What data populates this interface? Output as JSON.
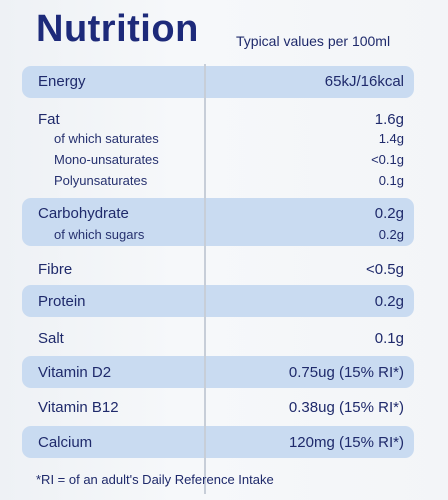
{
  "label": {
    "title": "Nutrition",
    "subtitle": "Typical values per 100ml",
    "rows": [
      {
        "name": "Energy",
        "value": "65kJ/16kcal"
      },
      {
        "name": "Fat",
        "value": "1.6g"
      },
      {
        "name": "of which saturates",
        "value": "1.4g"
      },
      {
        "name": "Mono-unsaturates",
        "value": "<0.1g"
      },
      {
        "name": "Polyunsaturates",
        "value": "0.1g"
      },
      {
        "name": "Carbohydrate",
        "value": "0.2g"
      },
      {
        "name": "of which sugars",
        "value": "0.2g"
      },
      {
        "name": "Fibre",
        "value": "<0.5g"
      },
      {
        "name": "Protein",
        "value": "0.2g"
      },
      {
        "name": "Salt",
        "value": "0.1g"
      },
      {
        "name": "Vitamin D2",
        "value": "0.75ug (15% RI*)"
      },
      {
        "name": "Vitamin B12",
        "value": "0.38ug (15% RI*)"
      },
      {
        "name": "Calcium",
        "value": "120mg (15% RI*)"
      }
    ],
    "footnote": "*RI = of an adult's Daily Reference Intake"
  },
  "colors": {
    "text": "#1f2a6b",
    "band": "#c9dbf1",
    "background": "#f4f6f8"
  }
}
